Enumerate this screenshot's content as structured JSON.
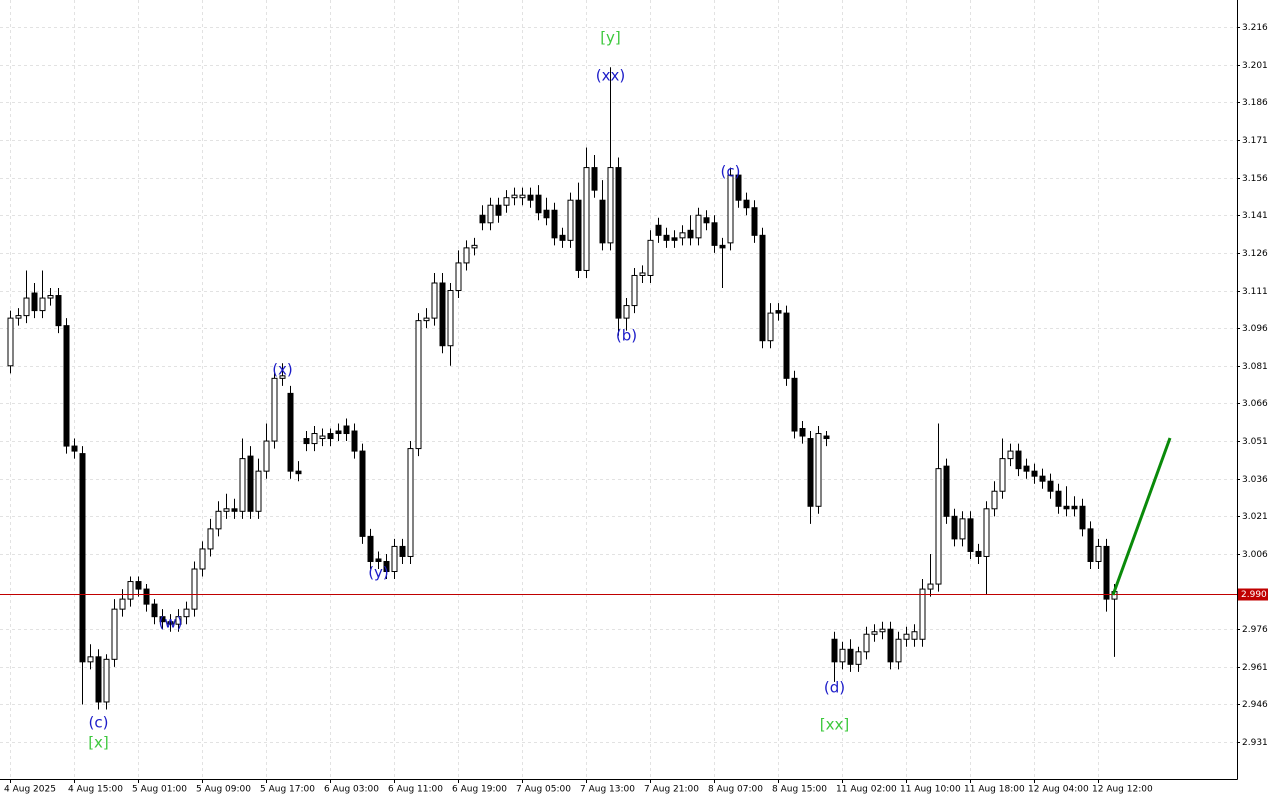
{
  "chart_data": {
    "type": "candlestick",
    "categories": [
      "4 Aug 2025",
      null,
      null,
      null,
      null,
      null,
      null,
      null,
      "4 Aug 15:00",
      null,
      null,
      null,
      null,
      null,
      null,
      null,
      "5 Aug 01:00",
      null,
      null,
      null,
      null,
      null,
      null,
      null,
      "5 Aug 09:00",
      null,
      null,
      null,
      null,
      null,
      null,
      null,
      "5 Aug 17:00",
      null,
      null,
      null,
      null,
      null,
      null,
      null,
      "6 Aug 03:00",
      null,
      null,
      null,
      null,
      null,
      null,
      null,
      "6 Aug 11:00",
      null,
      null,
      null,
      null,
      null,
      null,
      null,
      "6 Aug 19:00",
      null,
      null,
      null,
      null,
      null,
      null,
      null,
      "7 Aug 05:00",
      null,
      null,
      null,
      null,
      null,
      null,
      null,
      "7 Aug 13:00",
      null,
      null,
      null,
      null,
      null,
      null,
      null,
      "7 Aug 21:00",
      null,
      null,
      null,
      null,
      null,
      null,
      null,
      "8 Aug 07:00",
      null,
      null,
      null,
      null,
      null,
      null,
      null,
      "8 Aug 15:00",
      null,
      null,
      null,
      null,
      null,
      null,
      null,
      "11 Aug 02:00",
      null,
      null,
      null,
      null,
      null,
      null,
      null,
      "11 Aug 10:00",
      null,
      null,
      null,
      null,
      null,
      null,
      null,
      "11 Aug 18:00",
      null,
      null,
      null,
      null,
      null,
      null,
      null,
      "12 Aug 04:00",
      null,
      null,
      null,
      null,
      null,
      null,
      null,
      "12 Aug 12:00",
      null,
      null
    ],
    "open": [
      3.081,
      3.1,
      3.101,
      3.11,
      3.103,
      3.108,
      3.109,
      3.097,
      3.049,
      3.046,
      2.963,
      2.965,
      2.947,
      2.964,
      2.984,
      2.988,
      2.995,
      2.992,
      2.986,
      2.981,
      2.979,
      2.978,
      2.981,
      2.984,
      3.0,
      3.008,
      3.016,
      3.023,
      3.024,
      3.023,
      3.045,
      3.023,
      3.039,
      3.051,
      3.076,
      3.07,
      3.039,
      3.052,
      3.05,
      3.052,
      3.054,
      3.055,
      3.057,
      3.055,
      3.047,
      3.013,
      3.004,
      3.003,
      2.999,
      3.009,
      3.005,
      3.048,
      3.099,
      3.1,
      3.114,
      3.089,
      3.111,
      3.122,
      3.128,
      3.141,
      3.138,
      3.145,
      3.145,
      3.148,
      3.148,
      3.149,
      3.149,
      3.143,
      3.143,
      3.133,
      3.131,
      3.147,
      3.119,
      3.16,
      3.147,
      3.13,
      3.16,
      3.1,
      3.105,
      3.117,
      3.117,
      3.137,
      3.133,
      3.132,
      3.132,
      3.135,
      3.132,
      3.14,
      3.138,
      3.129,
      3.13,
      3.157,
      3.147,
      3.144,
      3.133,
      3.091,
      3.103,
      3.102,
      3.076,
      3.056,
      3.052,
      3.025,
      3.053,
      2.972,
      2.963,
      2.968,
      2.962,
      2.967,
      2.974,
      2.975,
      2.976,
      2.963,
      2.972,
      2.972,
      2.972,
      2.992,
      2.994,
      3.041,
      3.021,
      3.012,
      3.02,
      3.007,
      3.005,
      3.024,
      3.031,
      3.044,
      3.047,
      3.041,
      3.039,
      3.037,
      3.035,
      3.031,
      3.025,
      3.025,
      3.025,
      3.016,
      3.003,
      3.009,
      2.988
    ],
    "high": [
      3.103,
      3.104,
      3.119,
      3.114,
      3.119,
      3.112,
      3.112,
      3.1,
      3.052,
      3.049,
      2.97,
      2.968,
      2.966,
      2.988,
      2.992,
      2.997,
      2.997,
      2.994,
      2.988,
      2.984,
      2.982,
      2.984,
      2.987,
      3.003,
      3.011,
      3.02,
      3.027,
      3.03,
      3.028,
      3.052,
      3.049,
      3.044,
      3.058,
      3.08,
      3.082,
      3.073,
      3.043,
      3.055,
      3.057,
      3.056,
      3.056,
      3.058,
      3.06,
      3.058,
      3.05,
      3.016,
      3.007,
      3.006,
      3.012,
      3.012,
      3.051,
      3.102,
      3.104,
      3.118,
      3.118,
      3.114,
      3.127,
      3.131,
      3.132,
      3.145,
      3.148,
      3.148,
      3.151,
      3.152,
      3.152,
      3.152,
      3.153,
      3.148,
      3.146,
      3.136,
      3.15,
      3.154,
      3.168,
      3.165,
      3.155,
      3.2,
      3.164,
      3.108,
      3.12,
      3.121,
      3.135,
      3.14,
      3.136,
      3.135,
      3.137,
      3.141,
      3.144,
      3.143,
      3.141,
      3.132,
      3.16,
      3.159,
      3.15,
      3.147,
      3.136,
      3.106,
      3.106,
      3.105,
      3.079,
      3.059,
      3.055,
      3.057,
      3.055,
      2.975,
      2.971,
      2.972,
      2.969,
      2.977,
      2.978,
      2.979,
      2.979,
      2.975,
      2.977,
      2.978,
      2.996,
      3.006,
      3.058,
      3.044,
      3.024,
      3.023,
      3.023,
      3.01,
      3.027,
      3.035,
      3.052,
      3.05,
      3.05,
      3.044,
      3.042,
      3.04,
      3.038,
      3.034,
      3.033,
      3.029,
      3.028,
      3.019,
      3.012,
      3.012,
      2.994
    ],
    "low": [
      3.078,
      3.097,
      3.098,
      3.1,
      3.1,
      3.105,
      3.094,
      3.046,
      3.044,
      2.946,
      2.96,
      2.944,
      2.944,
      2.961,
      2.981,
      2.985,
      2.989,
      2.983,
      2.978,
      2.976,
      2.975,
      2.975,
      2.978,
      2.981,
      2.997,
      3.005,
      3.013,
      3.02,
      3.02,
      3.02,
      3.02,
      3.02,
      3.036,
      3.048,
      3.073,
      3.036,
      3.035,
      3.047,
      3.047,
      3.049,
      3.049,
      3.051,
      3.051,
      3.044,
      3.01,
      3.0,
      3.0,
      2.996,
      2.996,
      3.002,
      3.002,
      3.045,
      3.096,
      3.097,
      3.086,
      3.081,
      3.108,
      3.119,
      3.125,
      3.135,
      3.135,
      3.138,
      3.142,
      3.145,
      3.145,
      3.144,
      3.139,
      3.137,
      3.129,
      3.128,
      3.128,
      3.116,
      3.116,
      3.148,
      3.127,
      3.127,
      3.093,
      3.095,
      3.102,
      3.114,
      3.114,
      3.13,
      3.128,
      3.128,
      3.129,
      3.129,
      3.129,
      3.135,
      3.126,
      3.112,
      3.127,
      3.144,
      3.141,
      3.13,
      3.088,
      3.088,
      3.099,
      3.073,
      3.052,
      3.05,
      3.018,
      3.022,
      3.049,
      2.955,
      2.96,
      2.959,
      2.959,
      2.964,
      2.971,
      2.972,
      2.96,
      2.96,
      2.969,
      2.969,
      2.969,
      2.989,
      2.991,
      3.018,
      3.009,
      3.009,
      3.004,
      3.002,
      2.99,
      3.021,
      3.028,
      3.041,
      3.037,
      3.036,
      3.034,
      3.032,
      3.028,
      3.022,
      3.021,
      3.021,
      3.013,
      3.0,
      3.0,
      2.983,
      2.965
    ],
    "close": [
      3.1,
      3.101,
      3.108,
      3.103,
      3.108,
      3.109,
      3.097,
      3.049,
      3.047,
      2.963,
      2.965,
      2.947,
      2.964,
      2.984,
      2.988,
      2.995,
      2.992,
      2.986,
      2.981,
      2.979,
      2.978,
      2.981,
      2.984,
      3.0,
      3.008,
      3.016,
      3.023,
      3.024,
      3.023,
      3.044,
      3.023,
      3.039,
      3.051,
      3.076,
      3.077,
      3.039,
      3.038,
      3.05,
      3.054,
      3.053,
      3.052,
      3.054,
      3.054,
      3.047,
      3.013,
      3.003,
      3.003,
      2.999,
      3.009,
      3.005,
      3.048,
      3.099,
      3.1,
      3.114,
      3.089,
      3.111,
      3.122,
      3.128,
      3.129,
      3.138,
      3.145,
      3.141,
      3.148,
      3.149,
      3.149,
      3.147,
      3.142,
      3.14,
      3.132,
      3.131,
      3.147,
      3.119,
      3.16,
      3.151,
      3.13,
      3.16,
      3.1,
      3.105,
      3.117,
      3.118,
      3.131,
      3.133,
      3.131,
      3.131,
      3.134,
      3.132,
      3.141,
      3.138,
      3.129,
      3.128,
      3.157,
      3.147,
      3.144,
      3.133,
      3.091,
      3.102,
      3.102,
      3.076,
      3.055,
      3.053,
      3.025,
      3.054,
      3.052,
      2.963,
      2.968,
      2.962,
      2.967,
      2.974,
      2.975,
      2.976,
      2.963,
      2.972,
      2.974,
      2.975,
      2.992,
      2.994,
      3.04,
      3.021,
      3.012,
      3.02,
      3.007,
      3.005,
      3.024,
      3.031,
      3.044,
      3.047,
      3.04,
      3.039,
      3.037,
      3.035,
      3.031,
      3.025,
      3.024,
      3.024,
      3.016,
      3.003,
      3.009,
      2.988,
      2.991
    ],
    "up_color": "#ffffff",
    "down_color": "#000000",
    "ylim": [
      2.9159,
      3.2268
    ],
    "yticks": [
      2.931,
      2.946,
      2.961,
      2.976,
      3.006,
      3.021,
      3.036,
      3.051,
      3.066,
      3.081,
      3.096,
      3.111,
      3.126,
      3.141,
      3.156,
      3.171,
      3.186,
      3.201,
      3.216
    ],
    "grid": true,
    "price_line": {
      "value": 2.99,
      "label": "2.990",
      "color": "#c00000"
    },
    "annotations": [
      {
        "text": "(c)",
        "color": "#1c1cc8"
      },
      {
        "text": "[x]",
        "color": "#3cc83c"
      },
      {
        "text": "(w)",
        "color": "#1c1cc8"
      },
      {
        "text": "(x)",
        "color": "#1c1cc8"
      },
      {
        "text": "(y)",
        "color": "#1c1cc8"
      },
      {
        "text": "[y]",
        "color": "#3cc83c"
      },
      {
        "text": "(xx)",
        "color": "#1c1cc8"
      },
      {
        "text": "(b)",
        "color": "#1c1cc8"
      },
      {
        "text": "(c)",
        "color": "#1c1cc8"
      },
      {
        "text": "(d)",
        "color": "#1c1cc8"
      },
      {
        "text": "[xx]",
        "color": "#3cc83c"
      }
    ]
  }
}
